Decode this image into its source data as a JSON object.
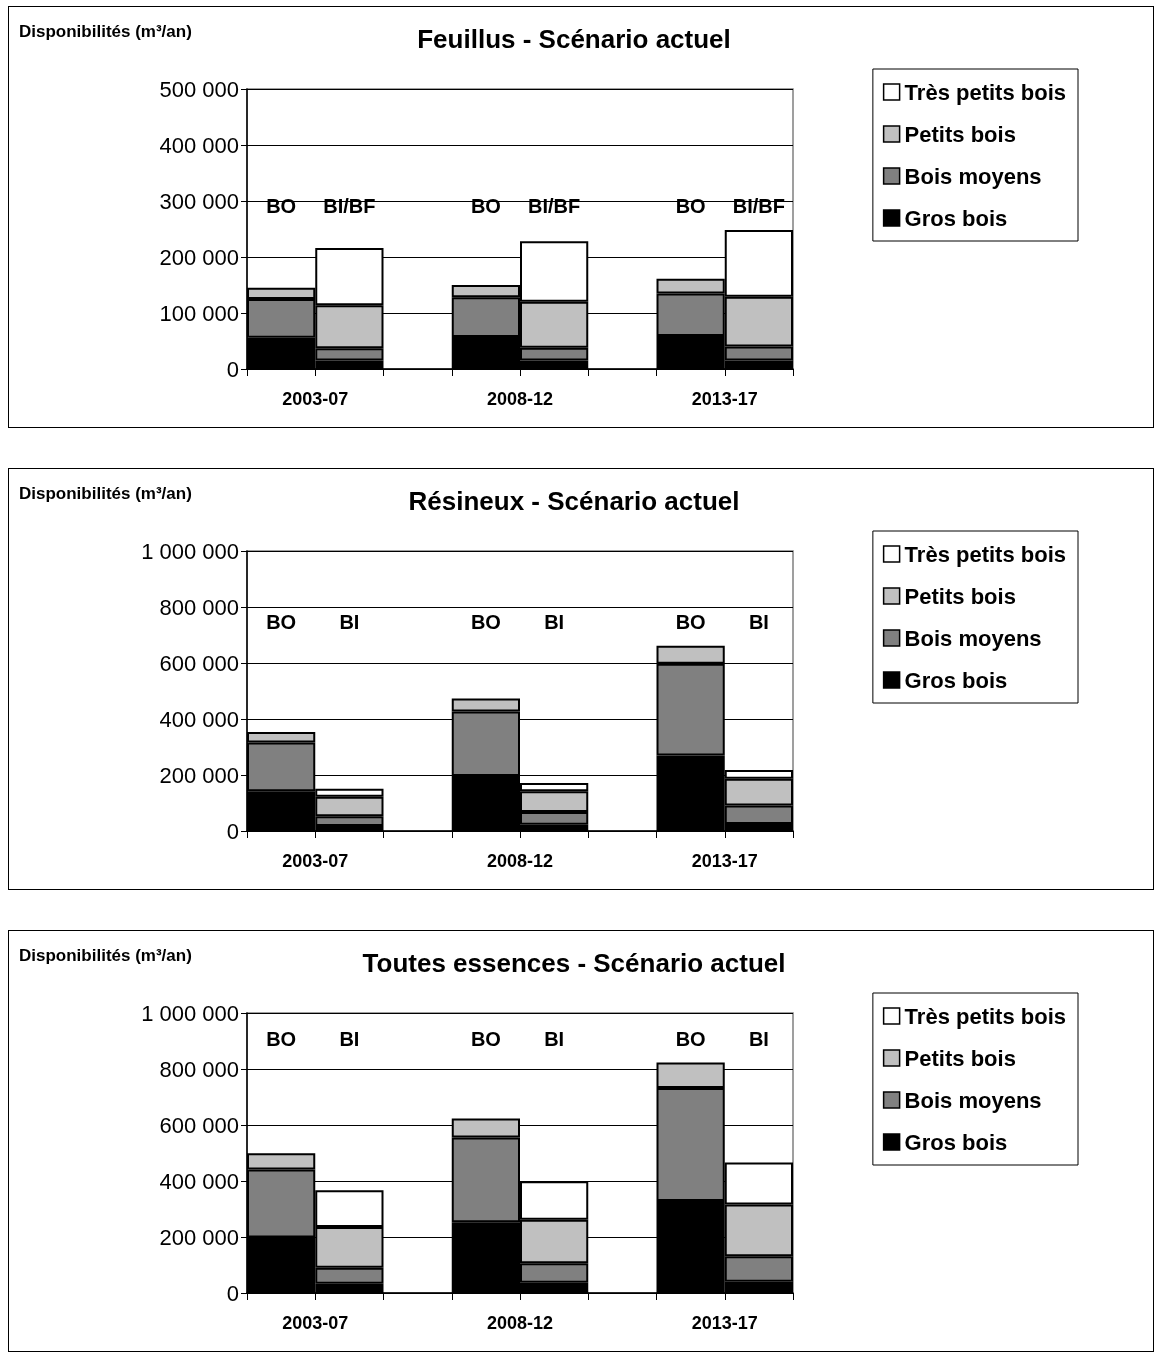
{
  "chart_data": [
    {
      "type": "bar",
      "title": "Feuillus - Scénario actuel",
      "ylabel": "Disponibilités (m³/an)",
      "categories": [
        "BO",
        "BI/BF",
        null,
        "BO",
        "BI/BF",
        null,
        "BO",
        "BI/BF"
      ],
      "stacked": true,
      "grid": "y",
      "legend": "right",
      "ylim": [
        0,
        500000
      ],
      "yticks": [
        {
          "value": 0,
          "label": "0"
        },
        {
          "value": 100000,
          "label": "100 000"
        },
        {
          "value": 200000,
          "label": "200 000"
        },
        {
          "value": 300000,
          "label": "300 000"
        },
        {
          "value": 400000,
          "label": "400 000"
        },
        {
          "value": 500000,
          "label": "500 000"
        }
      ],
      "series": [
        {
          "name": "Gros bois",
          "color": "#000000",
          "values": [
            56000,
            15000,
            null,
            57000,
            15000,
            null,
            59000,
            15000
          ]
        },
        {
          "name": "Bois moyens",
          "color": "#808080",
          "values": [
            69000,
            22000,
            null,
            71000,
            23000,
            null,
            76000,
            25000
          ]
        },
        {
          "name": "Petits bois",
          "color": "#c0c0c0",
          "values": [
            20000,
            77000,
            null,
            22000,
            82000,
            null,
            26000,
            89000
          ]
        },
        {
          "name": "Très petits bois",
          "color": "#ffffff",
          "values": [
            null,
            102000,
            null,
            null,
            108000,
            null,
            null,
            119000
          ]
        }
      ],
      "annotations": [
        "2003-07",
        "2008-12",
        "2013-17"
      ]
    },
    {
      "type": "bar",
      "title": "Résineux - Scénario actuel",
      "ylabel": "Disponibilités (m³/an)",
      "categories": [
        "BO",
        "BI",
        null,
        "BO",
        "BI",
        null,
        "BO",
        "BI"
      ],
      "stacked": true,
      "grid": "y",
      "legend": "right",
      "ylim": [
        0,
        1000000
      ],
      "yticks": [
        {
          "value": 0,
          "label": "0"
        },
        {
          "value": 200000,
          "label": "200 000"
        },
        {
          "value": 400000,
          "label": "400 000"
        },
        {
          "value": 600000,
          "label": "600 000"
        },
        {
          "value": 800000,
          "label": "800 000"
        },
        {
          "value": 1000000,
          "label": "1 000 000"
        }
      ],
      "series": [
        {
          "name": "Gros bois",
          "color": "#000000",
          "values": [
            142000,
            18000,
            null,
            196000,
            22000,
            null,
            270000,
            25000
          ]
        },
        {
          "name": "Bois moyens",
          "color": "#808080",
          "values": [
            174000,
            35000,
            null,
            231000,
            46000,
            null,
            327000,
            66000
          ]
        },
        {
          "name": "Petits bois",
          "color": "#c0c0c0",
          "values": [
            38000,
            69000,
            null,
            46000,
            74000,
            null,
            65000,
            96000
          ]
        },
        {
          "name": "Très petits bois",
          "color": "#ffffff",
          "values": [
            null,
            29000,
            null,
            null,
            29000,
            null,
            null,
            31000
          ]
        }
      ],
      "annotations": [
        "2003-07",
        "2008-12",
        "2013-17"
      ]
    },
    {
      "type": "bar",
      "title": "Toutes essences - Scénario actuel",
      "ylabel": "Disponibilités (m³/an)",
      "categories": [
        "BO",
        "BI",
        null,
        "BO",
        "BI",
        null,
        "BO",
        "BI"
      ],
      "stacked": true,
      "grid": "y",
      "legend": "right",
      "ylim": [
        0,
        1000000
      ],
      "yticks": [
        {
          "value": 0,
          "label": "0"
        },
        {
          "value": 200000,
          "label": "200 000"
        },
        {
          "value": 400000,
          "label": "400 000"
        },
        {
          "value": 600000,
          "label": "600 000"
        },
        {
          "value": 800000,
          "label": "800 000"
        },
        {
          "value": 1000000,
          "label": "1 000 000"
        }
      ],
      "series": [
        {
          "name": "Gros bois",
          "color": "#000000",
          "values": [
            198000,
            33000,
            null,
            253000,
            37000,
            null,
            329000,
            40000
          ]
        },
        {
          "name": "Bois moyens",
          "color": "#808080",
          "values": [
            243000,
            57000,
            null,
            302000,
            69000,
            null,
            403000,
            91000
          ]
        },
        {
          "name": "Petits bois",
          "color": "#c0c0c0",
          "values": [
            58000,
            146000,
            null,
            68000,
            156000,
            null,
            91000,
            185000
          ]
        },
        {
          "name": "Très petits bois",
          "color": "#ffffff",
          "values": [
            null,
            131000,
            null,
            null,
            137000,
            null,
            null,
            150000
          ]
        }
      ],
      "annotations": [
        "2003-07",
        "2008-12",
        "2013-17"
      ]
    }
  ]
}
